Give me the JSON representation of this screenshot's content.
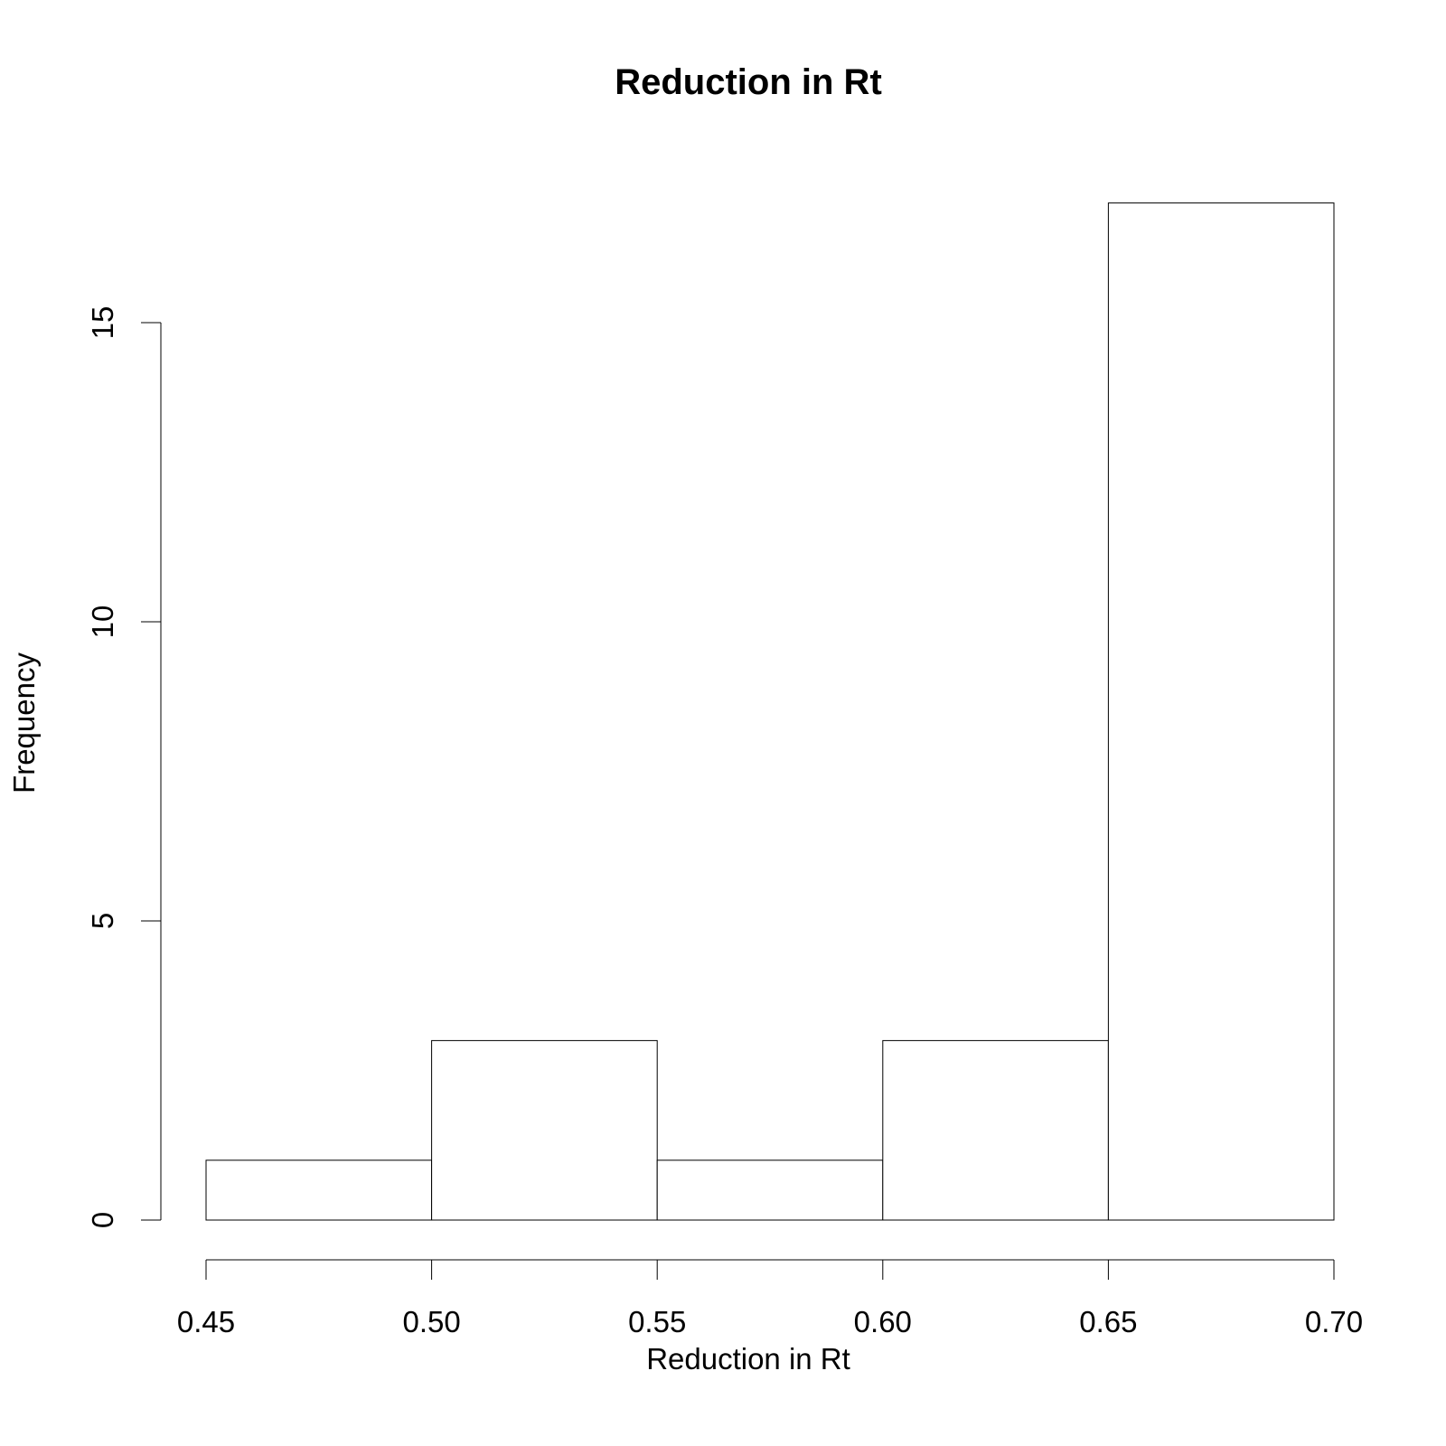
{
  "chart_data": {
    "type": "bar",
    "title": "Reduction in Rt",
    "xlabel": "Reduction in Rt",
    "ylabel": "Frequency",
    "bins": [
      {
        "from": 0.45,
        "to": 0.5,
        "count": 1
      },
      {
        "from": 0.5,
        "to": 0.55,
        "count": 3
      },
      {
        "from": 0.55,
        "to": 0.6,
        "count": 1
      },
      {
        "from": 0.6,
        "to": 0.65,
        "count": 3
      },
      {
        "from": 0.65,
        "to": 0.7,
        "count": 17
      }
    ],
    "xlim": [
      0.45,
      0.7
    ],
    "ylim": [
      0,
      17
    ],
    "x_ticks": [
      "0.45",
      "0.50",
      "0.55",
      "0.60",
      "0.65",
      "0.70"
    ],
    "y_ticks": [
      "0",
      "5",
      "10",
      "15"
    ],
    "grid": false,
    "bar_fill": "#ffffff",
    "bar_stroke": "#000000"
  }
}
